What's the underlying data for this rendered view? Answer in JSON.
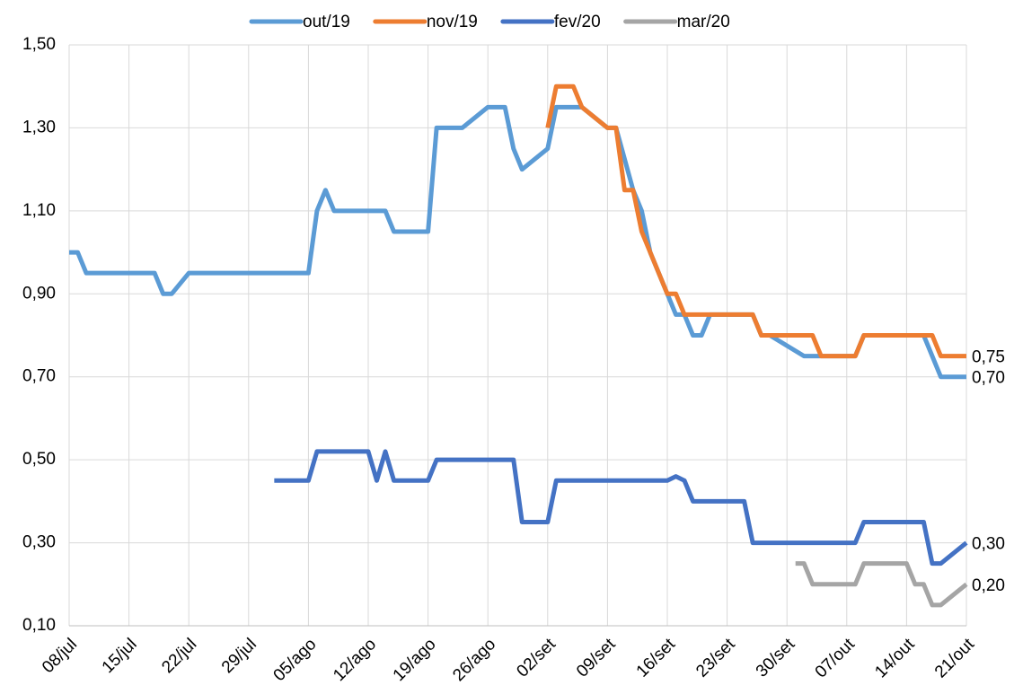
{
  "chart_data": {
    "type": "line",
    "xlim": [
      0,
      105
    ],
    "xticks": [
      {
        "value": 0,
        "label": "08/jul"
      },
      {
        "value": 7,
        "label": "15/jul"
      },
      {
        "value": 14,
        "label": "22/jul"
      },
      {
        "value": 21,
        "label": "29/jul"
      },
      {
        "value": 28,
        "label": "05/ago"
      },
      {
        "value": 35,
        "label": "12/ago"
      },
      {
        "value": 42,
        "label": "19/ago"
      },
      {
        "value": 49,
        "label": "26/ago"
      },
      {
        "value": 56,
        "label": "02/set"
      },
      {
        "value": 63,
        "label": "09/set"
      },
      {
        "value": 70,
        "label": "16/set"
      },
      {
        "value": 77,
        "label": "23/set"
      },
      {
        "value": 84,
        "label": "30/set"
      },
      {
        "value": 91,
        "label": "07/out"
      },
      {
        "value": 98,
        "label": "14/out"
      },
      {
        "value": 105,
        "label": "21/out"
      }
    ],
    "ylim": [
      0.1,
      1.5
    ],
    "yticks": [
      {
        "value": 0.1,
        "label": "0,10"
      },
      {
        "value": 0.3,
        "label": "0,30"
      },
      {
        "value": 0.5,
        "label": "0,50"
      },
      {
        "value": 0.7,
        "label": "0,70"
      },
      {
        "value": 0.9,
        "label": "0,90"
      },
      {
        "value": 1.1,
        "label": "1,10"
      },
      {
        "value": 1.3,
        "label": "1,30"
      },
      {
        "value": 1.5,
        "label": "1,50"
      }
    ],
    "grid": true,
    "legend": "top",
    "series": [
      {
        "name": "out/19",
        "color": "#5b9bd5",
        "end_label": "0,70",
        "x": [
          0,
          1,
          2,
          10,
          11,
          12,
          14,
          28,
          29,
          30,
          31,
          37,
          38,
          42,
          43,
          46,
          49,
          51,
          52,
          53,
          56,
          57,
          60,
          63,
          64,
          66,
          67,
          68,
          71,
          72,
          73,
          74,
          75,
          80,
          81,
          82,
          86,
          92,
          93,
          100,
          102,
          105
        ],
        "values": [
          1.0,
          1.0,
          0.95,
          0.95,
          0.9,
          0.9,
          0.95,
          0.95,
          1.1,
          1.15,
          1.1,
          1.1,
          1.05,
          1.05,
          1.3,
          1.3,
          1.35,
          1.35,
          1.25,
          1.2,
          1.25,
          1.35,
          1.35,
          1.3,
          1.3,
          1.15,
          1.1,
          1.0,
          0.85,
          0.85,
          0.8,
          0.8,
          0.85,
          0.85,
          0.8,
          0.8,
          0.75,
          0.75,
          0.8,
          0.8,
          0.7,
          0.7
        ]
      },
      {
        "name": "nov/19",
        "color": "#ed7d31",
        "end_label": "0,75",
        "x": [
          56,
          57,
          59,
          60,
          63,
          64,
          65,
          66,
          67,
          70,
          71,
          72,
          80,
          81,
          87,
          88,
          92,
          93,
          101,
          102,
          105
        ],
        "values": [
          1.3,
          1.4,
          1.4,
          1.35,
          1.3,
          1.3,
          1.15,
          1.15,
          1.05,
          0.9,
          0.9,
          0.85,
          0.85,
          0.8,
          0.8,
          0.75,
          0.75,
          0.8,
          0.8,
          0.75,
          0.75
        ]
      },
      {
        "name": "fev/20",
        "color": "#4472c4",
        "end_label": "0,30",
        "x": [
          24,
          28,
          29,
          35,
          36,
          37,
          38,
          42,
          43,
          52,
          53,
          56,
          57,
          70,
          71,
          72,
          73,
          79,
          80,
          92,
          93,
          100,
          101,
          102,
          105
        ],
        "values": [
          0.45,
          0.45,
          0.52,
          0.52,
          0.45,
          0.52,
          0.45,
          0.45,
          0.5,
          0.5,
          0.35,
          0.35,
          0.45,
          0.45,
          0.46,
          0.45,
          0.4,
          0.4,
          0.3,
          0.3,
          0.35,
          0.35,
          0.25,
          0.25,
          0.3
        ]
      },
      {
        "name": "mar/20",
        "color": "#a5a5a5",
        "end_label": "0,20",
        "x": [
          85,
          86,
          87,
          92,
          93,
          98,
          99,
          100,
          101,
          102,
          105
        ],
        "values": [
          0.25,
          0.25,
          0.2,
          0.2,
          0.25,
          0.25,
          0.2,
          0.2,
          0.15,
          0.15,
          0.2
        ]
      }
    ]
  }
}
